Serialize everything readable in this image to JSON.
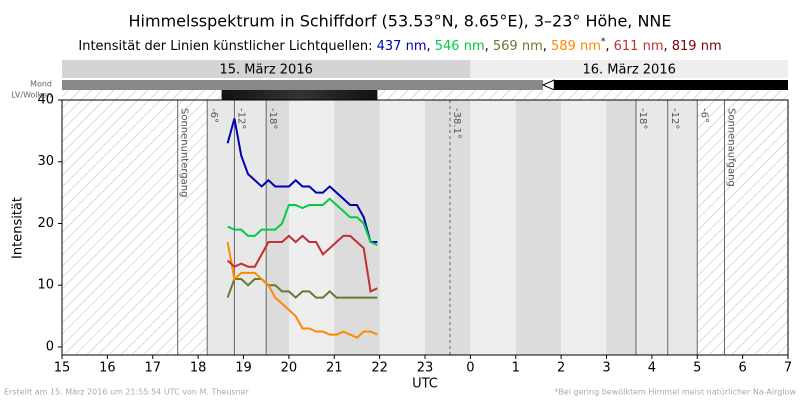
{
  "chart_data": {
    "type": "line",
    "title": "Himmelsspektrum in Schiffdorf (53.53°N, 8.65°E), 3–23° Höhe, NNE",
    "subtitle": "Intensität der Linien künstlicher Lichtquellen: ",
    "legend_separator": ", ",
    "footnote_mark": "*",
    "x_label": "UTC",
    "y_label": "Intensität",
    "date_labels": [
      "15. März 2016",
      "16. März 2016"
    ],
    "row_labels": [
      "Mond",
      "LV/Wolken"
    ],
    "footer_left": "Erstellt am 15. März 2016 um 21:55:54 UTC von M. Theusner",
    "footer_right": "*Bei gering bewölktem Himmel meist natürlicher Na-Airglow",
    "sun_lines": [
      {
        "x": 17.55,
        "label": "Sonnenuntergang"
      },
      {
        "x": 18.2,
        "label": "-6°"
      },
      {
        "x": 18.8,
        "label": "-12°"
      },
      {
        "x": 19.5,
        "label": "-18°"
      },
      {
        "x": 23.55,
        "label": "-38.1°"
      },
      {
        "x": 27.65,
        "label": "-18°"
      },
      {
        "x": 28.35,
        "label": "-12°"
      },
      {
        "x": 29.0,
        "label": "-6°"
      },
      {
        "x": 29.6,
        "label": "Sonnenaufgang"
      }
    ],
    "x": [
      18.65,
      18.8,
      18.95,
      19.1,
      19.25,
      19.4,
      19.55,
      19.7,
      19.85,
      20.0,
      20.15,
      20.3,
      20.45,
      20.6,
      20.75,
      20.9,
      21.05,
      21.2,
      21.35,
      21.5,
      21.65,
      21.8,
      21.95
    ],
    "series": [
      {
        "name": "437 nm",
        "color": "#0000b4",
        "values": [
          33,
          37,
          31,
          28,
          27,
          26,
          27,
          26,
          26,
          26,
          27,
          26,
          26,
          25,
          25,
          26,
          25,
          24,
          23,
          23,
          21,
          17,
          17
        ]
      },
      {
        "name": "546 nm",
        "color": "#00cc44",
        "values": [
          19.5,
          19,
          19,
          18,
          18,
          19,
          19,
          19,
          20,
          23,
          23,
          22.5,
          23,
          23,
          23,
          24,
          23,
          22,
          21,
          21,
          20,
          17,
          16.5
        ]
      },
      {
        "name": "569 nm",
        "color": "#667a30",
        "values": [
          8,
          11,
          11,
          10,
          11,
          11,
          10,
          10,
          9,
          9,
          8,
          9,
          9,
          8,
          8,
          9,
          8,
          8,
          8,
          8,
          8,
          8,
          8
        ]
      },
      {
        "name": "589 nm",
        "color": "#ff8800",
        "values": [
          17,
          11,
          12,
          12,
          12,
          11,
          10,
          8,
          7,
          6,
          5,
          3,
          3,
          2.5,
          2.5,
          2,
          2,
          2.5,
          2,
          1.5,
          2.5,
          2.5,
          2
        ]
      },
      {
        "name": "611 nm",
        "color": "#c03030",
        "values": [
          14,
          13,
          13.5,
          13,
          13,
          15,
          17,
          17,
          17,
          18,
          17,
          18,
          17,
          17,
          15,
          16,
          17,
          18,
          18,
          17,
          16,
          9,
          9.5
        ]
      },
      {
        "name": "819 nm",
        "color": "#800000",
        "values": [
          null,
          null,
          null,
          null,
          null,
          null,
          null,
          null,
          null,
          null,
          null,
          null,
          null,
          null,
          null,
          null,
          null,
          null,
          null,
          null,
          null,
          null,
          null
        ]
      }
    ],
    "xlim": [
      15,
      31
    ],
    "xticks": [
      15,
      16,
      17,
      18,
      19,
      20,
      21,
      22,
      23,
      {
        "value": 24,
        "label": "0"
      },
      {
        "value": 25,
        "label": "1"
      },
      {
        "value": 26,
        "label": "2"
      },
      {
        "value": 27,
        "label": "3"
      },
      {
        "value": 28,
        "label": "4"
      },
      {
        "value": 29,
        "label": "5"
      },
      {
        "value": 30,
        "label": "6"
      },
      {
        "value": 31,
        "label": "7"
      }
    ],
    "ylim": [
      -1.3,
      40
    ],
    "yticks": [
      0,
      10,
      20,
      30,
      40
    ]
  }
}
